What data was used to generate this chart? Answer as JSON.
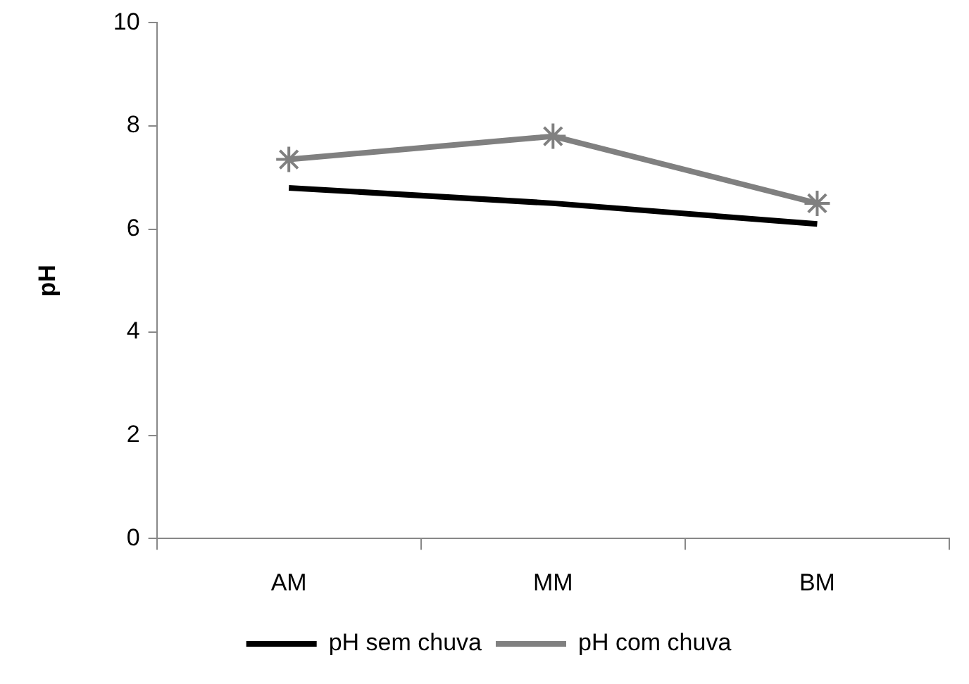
{
  "chart_data": {
    "type": "line",
    "ylabel": "pH",
    "categories": [
      "AM",
      "MM",
      "BM"
    ],
    "series": [
      {
        "name": "pH sem chuva",
        "color": "#000000",
        "values": [
          6.8,
          6.5,
          6.1
        ],
        "marker": "none"
      },
      {
        "name": "pH com chuva",
        "color": "#808080",
        "values": [
          7.35,
          7.8,
          6.5
        ],
        "marker": "cross"
      }
    ],
    "ylim": [
      0,
      10
    ],
    "yticks": [
      0,
      2,
      4,
      6,
      8,
      10
    ],
    "grid": false,
    "legend": "bottom"
  }
}
